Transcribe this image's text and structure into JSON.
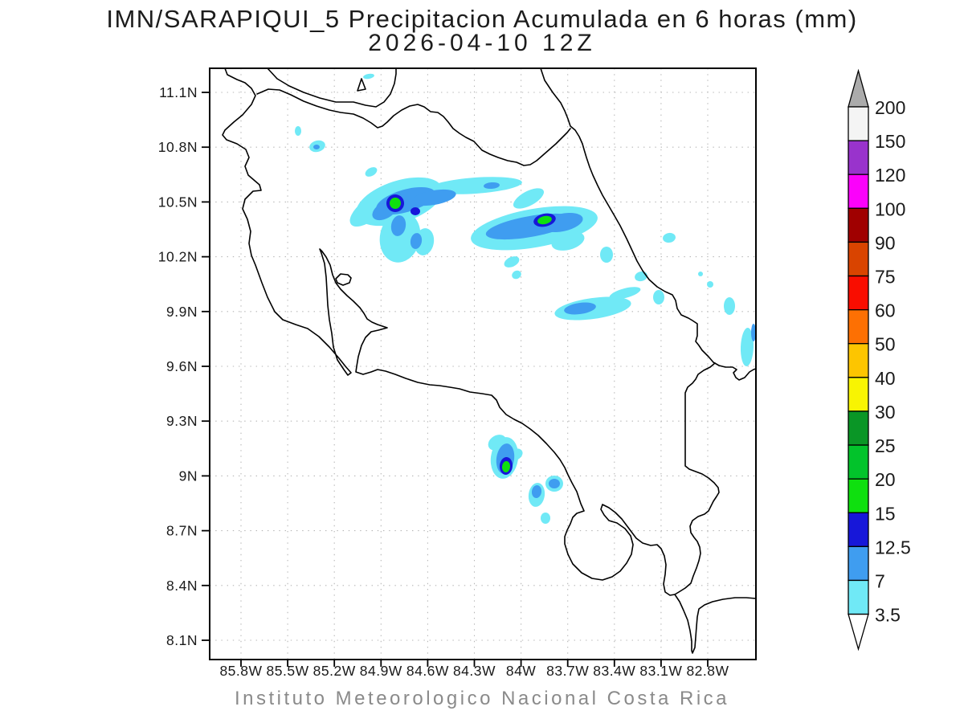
{
  "title": {
    "line1": "IMN/SARAPIQUI_5 Precipitacion Acumulada en 6 horas (mm)",
    "line2": "2026-04-10 12Z"
  },
  "footer": "Instituto Meteorologico Nacional Costa Rica",
  "axes": {
    "lat_labels": [
      "11.1N",
      "10.8N",
      "10.5N",
      "10.2N",
      "9.9N",
      "9.6N",
      "9.3N",
      "9N",
      "8.7N",
      "8.4N",
      "8.1N"
    ],
    "lon_labels": [
      "85.8W",
      "85.5W",
      "85.2W",
      "84.9W",
      "84.6W",
      "84.3W",
      "84W",
      "83.7W",
      "83.4W",
      "83.1W",
      "82.8W"
    ]
  },
  "colorbar": {
    "tick_labels": [
      "200",
      "150",
      "120",
      "100",
      "90",
      "75",
      "60",
      "50",
      "40",
      "30",
      "25",
      "20",
      "15",
      "12.5",
      "7",
      "3.5"
    ],
    "segment_colors_top_to_bottom": [
      "#f4f4f4",
      "#9933cc",
      "#fb02fb",
      "#a00000",
      "#d94400",
      "#f90d00",
      "#fd7003",
      "#fdc500",
      "#f8f402",
      "#0a9626",
      "#02c32b",
      "#0fe00f",
      "#1717d9",
      "#3f9df0",
      "#70e9f6"
    ],
    "overflow_color": "#ababab",
    "underflow_color": "#ffffff"
  },
  "chart_data": {
    "type": "heatmap",
    "title": "IMN/SARAPIQUI_5 Precipitacion Acumulada en 6 horas (mm)",
    "subtitle": "2026-04-10 12Z",
    "units": "mm",
    "region": "Costa Rica and vicinity (coastline outline map)",
    "footer": "Instituto Meteorologico Nacional Costa Rica",
    "x_ticks": [
      "85.8W",
      "85.5W",
      "85.2W",
      "84.9W",
      "84.6W",
      "84.3W",
      "84W",
      "83.7W",
      "83.4W",
      "83.1W",
      "82.8W"
    ],
    "y_ticks": [
      "11.1N",
      "10.8N",
      "10.5N",
      "10.2N",
      "9.9N",
      "9.6N",
      "9.3N",
      "9N",
      "8.7N",
      "8.4N",
      "8.1N"
    ],
    "lon_range_deg_west": [
      86.0,
      82.5
    ],
    "lat_range_deg_north": [
      8.0,
      11.23
    ],
    "grid": true,
    "legend_position": "right",
    "levels_mm": [
      3.5,
      7,
      12.5,
      15,
      20,
      25,
      30,
      40,
      50,
      60,
      75,
      90,
      100,
      120,
      150,
      200
    ],
    "level_colors_low_to_high": [
      "#70e9f6",
      "#3f9df0",
      "#1717d9",
      "#0fe00f",
      "#02c32b",
      "#0a9626",
      "#f8f402",
      "#fdc500",
      "#fd7003",
      "#f90d00",
      "#d94400",
      "#a00000",
      "#fb02fb",
      "#9933cc",
      "#f4f4f4"
    ],
    "precip_maxima": [
      {
        "lat_n": 10.49,
        "lon_w": 84.81,
        "max_bin_mm": "15-20"
      },
      {
        "lat_n": 10.4,
        "lon_w": 83.85,
        "max_bin_mm": "15-20"
      },
      {
        "lat_n": 9.05,
        "lon_w": 84.1,
        "max_bin_mm": "15-20"
      },
      {
        "lat_n": 10.45,
        "lon_w": 84.68,
        "max_bin_mm": "12.5-15"
      },
      {
        "lat_n": 9.92,
        "lon_w": 83.62,
        "max_bin_mm": "7-12.5"
      },
      {
        "lat_n": 10.78,
        "lon_w": 85.31,
        "max_bin_mm": "7-12.5"
      },
      {
        "lat_n": 8.9,
        "lon_w": 83.9,
        "max_bin_mm": "7-12.5"
      }
    ]
  }
}
